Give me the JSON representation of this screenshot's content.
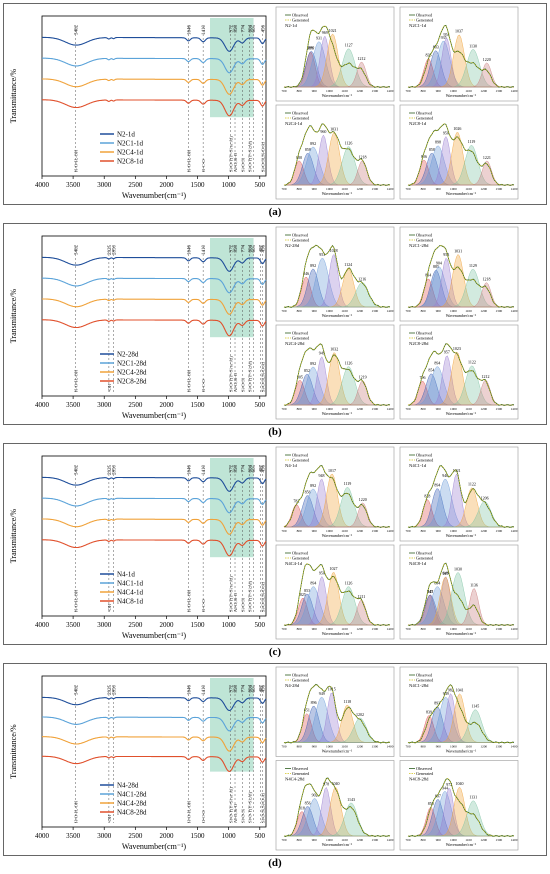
{
  "colors": {
    "blue": "#1f4e9a",
    "skyblue": "#5ba3d9",
    "orange": "#f0a23a",
    "red": "#e0502c",
    "shade": "#a9dcc8",
    "bandlabel": "#333333"
  },
  "chart_data": [
    {
      "type": "line",
      "panel_label": "(a)",
      "ylabel": "Transmittance/%",
      "xlabel": "Wavenumber(cm⁻¹)",
      "xlim": [
        4000,
        400
      ],
      "xticks": [
        4000,
        3500,
        3000,
        2500,
        2000,
        1500,
        1000,
        500
      ],
      "series": [
        {
          "name": "N2-1d",
          "color": "blue"
        },
        {
          "name": "N2C1-1d",
          "color": "skyblue"
        },
        {
          "name": "N2C4-1d",
          "color": "orange"
        },
        {
          "name": "N2C8-1d",
          "color": "red"
        }
      ],
      "markers": [
        3462,
        1646,
        1410,
        972,
        898,
        774,
        664,
        605,
        456
      ],
      "peak_labels": [
        "3462",
        "1646",
        "1410",
        "972",
        "898",
        "774",
        "664",
        "605",
        "456"
      ],
      "assignments": [
        {
          "x": 3462,
          "t": "H-O-H,-OH"
        },
        {
          "x": 1646,
          "t": "H-O-H,-OH"
        },
        {
          "x": 1410,
          "t": "O-C-O"
        },
        {
          "x": 972,
          "t": "Si-O-T(T=Si or Al)"
        },
        {
          "x": 898,
          "t": "Al-O,Si-O"
        },
        {
          "x": 774,
          "t": "Si-O-Si"
        },
        {
          "x": 664,
          "t": "Si-O-T(T=Si,Al)"
        },
        {
          "x": 456,
          "t": "Si-O-Si,Si-O-Al"
        }
      ],
      "shade": [
        1300,
        600
      ],
      "decon": [
        {
          "title": "N2-1d",
          "peaks": [
            {
              "c": 875,
              "label": "875"
            },
            {
              "c": 880,
              "label": "880"
            },
            {
              "c": 931,
              "label": "931"
            },
            {
              "c": 969,
              "label": "969"
            },
            {
              "c": 1021,
              "label": "1021"
            },
            {
              "c": 1127,
              "label": "1127"
            },
            {
              "c": 1212,
              "label": "1212"
            }
          ]
        },
        {
          "title": "N2C1-1d",
          "peaks": [
            {
              "c": 835,
              "label": "835"
            },
            {
              "c": 883,
              "label": "883"
            },
            {
              "c": 935,
              "label": "935"
            },
            {
              "c": 954,
              "label": "954"
            },
            {
              "c": 1037,
              "label": "1037"
            },
            {
              "c": 1130,
              "label": "1130"
            },
            {
              "c": 1220,
              "label": "1220"
            }
          ]
        },
        {
          "title": "N2C4-1d",
          "peaks": [
            {
              "c": 800,
              "label": "800"
            },
            {
              "c": 858,
              "label": "858"
            },
            {
              "c": 892,
              "label": "892"
            },
            {
              "c": 960,
              "label": "960"
            },
            {
              "c": 1031,
              "label": "1031"
            },
            {
              "c": 1126,
              "label": "1126"
            },
            {
              "c": 1218,
              "label": "1218"
            }
          ]
        },
        {
          "title": "N2C8-1d",
          "peaks": [
            {
              "c": 806,
              "label": "806"
            },
            {
              "c": 858,
              "label": "858"
            },
            {
              "c": 898,
              "label": "898"
            },
            {
              "c": 950,
              "label": "950"
            },
            {
              "c": 1026,
              "label": "1026"
            },
            {
              "c": 1119,
              "label": "1119"
            },
            {
              "c": 1221,
              "label": "1221"
            }
          ]
        }
      ]
    },
    {
      "type": "line",
      "panel_label": "(b)",
      "ylabel": "Transmittance/%",
      "xlabel": "Wavenumber(cm⁻¹)",
      "xlim": [
        4000,
        400
      ],
      "xticks": [
        4000,
        3500,
        3000,
        2500,
        2000,
        1500,
        1000,
        500
      ],
      "series": [
        {
          "name": "N2-28d",
          "color": "blue"
        },
        {
          "name": "N2C1-28d",
          "color": "skyblue"
        },
        {
          "name": "N2C4-28d",
          "color": "orange"
        },
        {
          "name": "N2C8-28d",
          "color": "red"
        }
      ],
      "markers": [
        3462,
        2925,
        2850,
        1646,
        1410,
        972,
        898,
        774,
        664,
        605,
        487,
        456
      ],
      "peak_labels": [
        "3462",
        "2925",
        "2850",
        "1646",
        "1410",
        "972",
        "898",
        "774",
        "664",
        "605",
        "487",
        "456"
      ],
      "assignments": [
        {
          "x": 3462,
          "t": "H-O-H,-OH"
        },
        {
          "x": 2925,
          "t": "-OH"
        },
        {
          "x": 1646,
          "t": "H-O-H,-OH"
        },
        {
          "x": 1410,
          "t": "O-C-O"
        },
        {
          "x": 972,
          "t": "Si-O-T(T=Si or Al)"
        },
        {
          "x": 898,
          "t": "Al-O,Si-O"
        },
        {
          "x": 774,
          "t": "Si-O-Si"
        },
        {
          "x": 664,
          "t": "Si-O-T(T=Si,Al)"
        },
        {
          "x": 456,
          "t": "Si-O-Si,Si-O-Al"
        }
      ],
      "shade": [
        1300,
        600
      ],
      "decon": [
        {
          "title": "N2-28d",
          "peaks": [
            {
              "c": 846,
              "label": "846"
            },
            {
              "c": 892,
              "label": "892"
            },
            {
              "c": 953,
              "label": "953"
            },
            {
              "c": 1028,
              "label": "1028"
            },
            {
              "c": 1124,
              "label": "1124"
            },
            {
              "c": 1216,
              "label": "1216"
            }
          ]
        },
        {
          "title": "N2C1-28d",
          "peaks": [
            {
              "c": 834,
              "label": "834"
            },
            {
              "c": 885,
              "label": "885"
            },
            {
              "c": 904,
              "label": "904"
            },
            {
              "c": 953,
              "label": "953"
            },
            {
              "c": 1031,
              "label": "1031"
            },
            {
              "c": 1129,
              "label": "1129"
            },
            {
              "c": 1218,
              "label": "1218"
            }
          ]
        },
        {
          "title": "N2C4-28d",
          "peaks": [
            {
              "c": 805,
              "label": "805"
            },
            {
              "c": 852,
              "label": "852"
            },
            {
              "c": 892,
              "label": "892"
            },
            {
              "c": 949,
              "label": "949"
            },
            {
              "c": 1032,
              "label": "1032"
            },
            {
              "c": 1126,
              "label": "1126"
            },
            {
              "c": 1219,
              "label": "1219"
            }
          ]
        },
        {
          "title": "N2C8-28d",
          "peaks": [
            {
              "c": 796,
              "label": "796"
            },
            {
              "c": 854,
              "label": "854"
            },
            {
              "c": 894,
              "label": "894"
            },
            {
              "c": 957,
              "label": "957"
            },
            {
              "c": 1023,
              "label": "1023"
            },
            {
              "c": 1122,
              "label": "1122"
            },
            {
              "c": 1212,
              "label": "1212"
            }
          ]
        }
      ]
    },
    {
      "type": "line",
      "panel_label": "(c)",
      "ylabel": "Transmittance/%",
      "xlabel": "Wavenumber(cm⁻¹)",
      "xlim": [
        4000,
        400
      ],
      "xticks": [
        4000,
        3500,
        3000,
        2500,
        2000,
        1500,
        1000,
        500
      ],
      "series": [
        {
          "name": "N4-1d",
          "color": "blue"
        },
        {
          "name": "N4C1-1d",
          "color": "skyblue"
        },
        {
          "name": "N4C4-1d",
          "color": "orange"
        },
        {
          "name": "N4C8-1d",
          "color": "red"
        }
      ],
      "markers": [
        3462,
        2925,
        2850,
        1646,
        1410,
        972,
        898,
        774,
        664,
        605,
        487,
        456
      ],
      "peak_labels": [
        "3462",
        "2925",
        "2850",
        "1646",
        "1410",
        "972",
        "898",
        "774",
        "664",
        "605",
        "487",
        "456"
      ],
      "assignments": [
        {
          "x": 3462,
          "t": "H-O-H,-OH"
        },
        {
          "x": 2925,
          "t": "-OH"
        },
        {
          "x": 1646,
          "t": "H-O-H,-OH"
        },
        {
          "x": 1410,
          "t": "O-C-O"
        },
        {
          "x": 972,
          "t": "Si-O-T(T=Si or Al)"
        },
        {
          "x": 898,
          "t": "Al-O,Si-O"
        },
        {
          "x": 774,
          "t": "Si-O-Si"
        },
        {
          "x": 664,
          "t": "Si-O-T(T=Si,Al)"
        },
        {
          "x": 456,
          "t": "Si-O-Si,Si-O-Al"
        }
      ],
      "shade": [
        1300,
        600
      ],
      "decon": [
        {
          "title": "N4-1d",
          "peaks": [
            {
              "c": 782,
              "label": "782"
            },
            {
              "c": 856,
              "label": "856"
            },
            {
              "c": 892,
              "label": "892"
            },
            {
              "c": 948,
              "label": "948"
            },
            {
              "c": 1017,
              "label": "1017"
            },
            {
              "c": 1119,
              "label": "1119"
            },
            {
              "c": 1220,
              "label": "1220"
            }
          ]
        },
        {
          "title": "N4C1-1d",
          "peaks": [
            {
              "c": 828,
              "label": "828"
            },
            {
              "c": 894,
              "label": "894"
            },
            {
              "c": 946,
              "label": "946"
            },
            {
              "c": 1021,
              "label": "1021"
            },
            {
              "c": 1122,
              "label": "1122"
            },
            {
              "c": 1206,
              "label": "1206"
            }
          ]
        },
        {
          "title": "N4C4-1d",
          "peaks": [
            {
              "c": 825,
              "label": "825"
            },
            {
              "c": 853,
              "label": "853"
            },
            {
              "c": 894,
              "label": "894"
            },
            {
              "c": 950,
              "label": "950"
            },
            {
              "c": 1027,
              "label": "1027"
            },
            {
              "c": 1126,
              "label": "1126"
            },
            {
              "c": 1211,
              "label": "1211"
            }
          ]
        },
        {
          "title": "N4C8-1d",
          "peaks": [
            {
              "c": 845,
              "label": "845"
            },
            {
              "c": 847,
              "label": "847"
            },
            {
              "c": 894,
              "label": "894"
            },
            {
              "c": 949,
              "label": "949"
            },
            {
              "c": 947,
              "label": "947"
            },
            {
              "c": 1030,
              "label": "1030"
            },
            {
              "c": 1136,
              "label": "1136"
            }
          ]
        }
      ]
    },
    {
      "type": "line",
      "panel_label": "(d)",
      "ylabel": "Transmittance/%",
      "xlabel": "Wavenumber(cm⁻¹)",
      "xlim": [
        4000,
        400
      ],
      "xticks": [
        4000,
        3500,
        3000,
        2500,
        2000,
        1500,
        1000,
        500
      ],
      "series": [
        {
          "name": "N4-28d",
          "color": "blue"
        },
        {
          "name": "N4C1-28d",
          "color": "skyblue"
        },
        {
          "name": "N4C4-28d",
          "color": "orange"
        },
        {
          "name": "N4C8-28d",
          "color": "red"
        }
      ],
      "markers": [
        3462,
        2925,
        2850,
        1646,
        1410,
        972,
        898,
        774,
        664,
        605,
        487,
        456
      ],
      "peak_labels": [
        "3462",
        "2925",
        "2850",
        "1646",
        "1410",
        "972",
        "898",
        "774",
        "664",
        "605",
        "487",
        "456"
      ],
      "assignments": [
        {
          "x": 3462,
          "t": "H-O-H,-OH"
        },
        {
          "x": 2925,
          "t": "-OH"
        },
        {
          "x": 1646,
          "t": "H-O-H,-OH"
        },
        {
          "x": 1410,
          "t": "O-C-O"
        },
        {
          "x": 972,
          "t": "Si-O-T(T=Si or Al)"
        },
        {
          "x": 898,
          "t": "Al-O,Si-O"
        },
        {
          "x": 774,
          "t": "Si-O-Si"
        },
        {
          "x": 664,
          "t": "Si-O-T(T=Si,Al)"
        },
        {
          "x": 456,
          "t": "Si-O-Si,Si-O-Al"
        }
      ],
      "shade": [
        1300,
        600
      ],
      "decon": [
        {
          "title": "N4-28d",
          "peaks": [
            {
              "c": 851,
              "label": "851"
            },
            {
              "c": 896,
              "label": "896"
            },
            {
              "c": 949,
              "label": "949"
            },
            {
              "c": 1015,
              "label": "1015"
            },
            {
              "c": 1118,
              "label": "1118"
            },
            {
              "c": 1202,
              "label": "1202"
            }
          ]
        },
        {
          "title": "N4C1-28d",
          "peaks": [
            {
              "c": 839,
              "label": "839"
            },
            {
              "c": 893,
              "label": "893"
            },
            {
              "c": 949,
              "label": "949"
            },
            {
              "c": 982,
              "label": "982"
            },
            {
              "c": 1041,
              "label": "1041"
            },
            {
              "c": 1145,
              "label": "1145"
            }
          ]
        },
        {
          "title": "N4C4-28d",
          "peaks": [
            {
              "c": 818,
              "label": "818"
            },
            {
              "c": 856,
              "label": "856"
            },
            {
              "c": 902,
              "label": "902"
            },
            {
              "c": 978,
              "label": "978"
            },
            {
              "c": 1040,
              "label": "1040"
            },
            {
              "c": 1143,
              "label": "1143"
            }
          ]
        },
        {
          "title": "N4C8-28d",
          "peaks": [
            {
              "c": 850,
              "label": "850"
            },
            {
              "c": 897,
              "label": "897"
            },
            {
              "c": 944,
              "label": "944"
            },
            {
              "c": 972,
              "label": "972"
            },
            {
              "c": 1040,
              "label": "1040"
            },
            {
              "c": 1131,
              "label": "1131"
            }
          ]
        }
      ]
    }
  ],
  "decon_common": {
    "legend_observed": "Observed",
    "legend_generated": "Generated",
    "xlabel": "Wavenumber/cm⁻¹",
    "ticks": [
      700,
      800,
      900,
      1000,
      1100,
      1200,
      1300,
      1400
    ]
  }
}
